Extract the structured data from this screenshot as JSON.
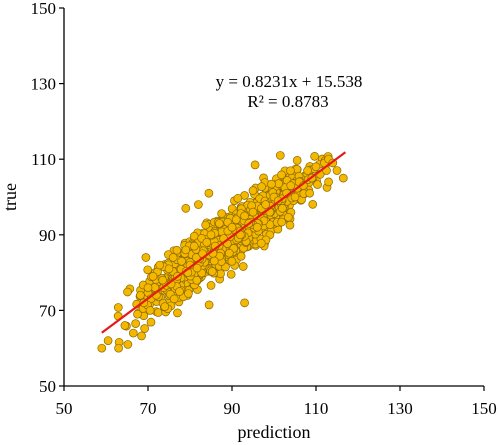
{
  "chart_data": {
    "type": "scatter",
    "title": "",
    "xlabel": "prediction",
    "ylabel": "true",
    "xlim": [
      50,
      150
    ],
    "ylim": [
      50,
      150
    ],
    "xticks": [
      50,
      70,
      90,
      110,
      130,
      150
    ],
    "yticks": [
      50,
      70,
      90,
      110,
      130,
      150
    ],
    "grid": false,
    "legend": "none",
    "point_color": "#F5B800",
    "point_edge_color": "#8a6a00",
    "fit_line_color": "#E41A1C",
    "fit_line": {
      "slope": 0.8231,
      "intercept": 15.538,
      "x_range": [
        59,
        117
      ]
    },
    "equation": "y = 0.8231x + 15.538",
    "r_squared": "R² = 0.8783",
    "approx_point_count": 1100,
    "series": [
      {
        "x": [
          59,
          60.5,
          63,
          64.5,
          65.2,
          66.5,
          67.5,
          68.2,
          69,
          70,
          70.5,
          71.2,
          72,
          72.8,
          73.5,
          74,
          75,
          75.5,
          76,
          77,
          77.5,
          78,
          79,
          79.5,
          80,
          81,
          81.5,
          82,
          83,
          84,
          85,
          86,
          87,
          88,
          89,
          90,
          91,
          92,
          93,
          94,
          95,
          96,
          97,
          98,
          99,
          100,
          101,
          102,
          103,
          104,
          105,
          106,
          107,
          108,
          109,
          110,
          111,
          112,
          113,
          115,
          116.5,
          93,
          95.5,
          69.5,
          79,
          84.5,
          101.5,
          108.5,
          112.5,
          114,
          113
        ],
        "y": [
          60,
          62,
          60,
          66,
          61,
          64,
          69,
          74,
          72,
          76,
          70,
          79,
          74,
          82,
          78,
          71,
          81,
          77,
          84,
          79,
          75,
          83,
          86,
          80,
          82,
          87,
          84,
          98,
          85,
          88,
          90,
          87,
          93,
          89,
          91,
          92,
          94,
          90,
          95,
          93,
          96,
          92,
          97,
          98,
          96,
          100,
          99,
          97,
          101,
          103,
          100,
          104,
          103,
          107,
          105,
          108,
          106,
          109,
          110,
          107,
          105,
          72,
          108.5,
          84,
          97,
          101,
          111,
          101,
          107,
          109,
          104
        ]
      }
    ]
  }
}
